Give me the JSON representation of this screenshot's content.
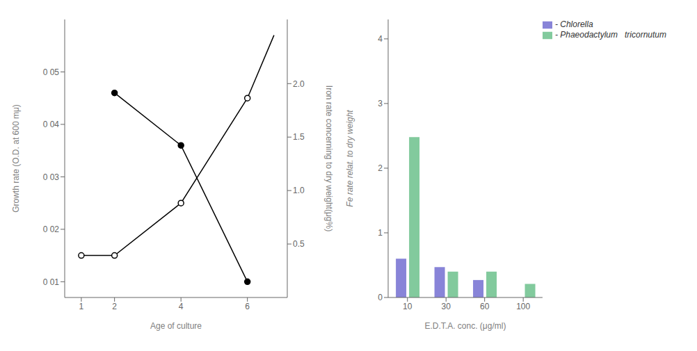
{
  "chart_data": [
    {
      "type": "line",
      "xlabel": "Age of culture",
      "ylabel": "Growth rate (O.D. at 600 mμ)",
      "y2label": "Iron rate concerning to dry weight(μg%)",
      "series": [
        {
          "type": "line",
          "x": [
            1,
            2,
            4,
            6,
            6.8
          ],
          "values": [
            0.015,
            0.015,
            0.025,
            0.045,
            0.057
          ],
          "marker": "none",
          "color": "black"
        },
        {
          "type": "scatter",
          "x": [
            1,
            2,
            4,
            6
          ],
          "values": [
            0.015,
            0.015,
            0.025,
            0.045
          ],
          "marker": "open_circle",
          "color": "black"
        },
        {
          "type": "line",
          "x": [
            2,
            4,
            6
          ],
          "values": [
            0.046,
            0.036,
            0.01
          ],
          "marker": "filled_circle",
          "color": "black"
        }
      ],
      "xlim": [
        0.5,
        7.2
      ],
      "xticks": [
        1,
        2,
        4,
        6
      ],
      "ylim": [
        0.007,
        0.06
      ],
      "yticks": [
        {
          "value": 0.01,
          "label": "0 01"
        },
        {
          "value": 0.02,
          "label": "0 02"
        },
        {
          "value": 0.03,
          "label": "0 03"
        },
        {
          "value": 0.04,
          "label": "0 04"
        },
        {
          "value": 0.05,
          "label": "0 05"
        }
      ],
      "y2lim": [
        0.0,
        2.6
      ],
      "y2ticks": [
        0.5,
        {
          "value": 1.0,
          "label": "1.0"
        },
        1.5,
        {
          "value": 2.0,
          "label": "2.0"
        }
      ],
      "grid": false
    },
    {
      "type": "bar",
      "xlabel": "E.D.T.A.  conc. (μg/ml)",
      "ylabel": "Fe rate relat. to dry weight",
      "categories": [
        "10",
        "30",
        "60",
        "100"
      ],
      "series": [
        {
          "name": "- Chlorella",
          "values": [
            0.6,
            0.47,
            0.27,
            0.0
          ],
          "color": "#8884d8"
        },
        {
          "name": "- Phaeodactylum   tricornutum",
          "values": [
            2.48,
            0.4,
            0.4,
            0.21
          ],
          "color": "#82ca9d"
        }
      ],
      "ylim": [
        0,
        4.3
      ],
      "yticks": [
        0,
        1,
        2,
        3,
        4
      ],
      "legend": "upper right",
      "grid": false
    }
  ]
}
